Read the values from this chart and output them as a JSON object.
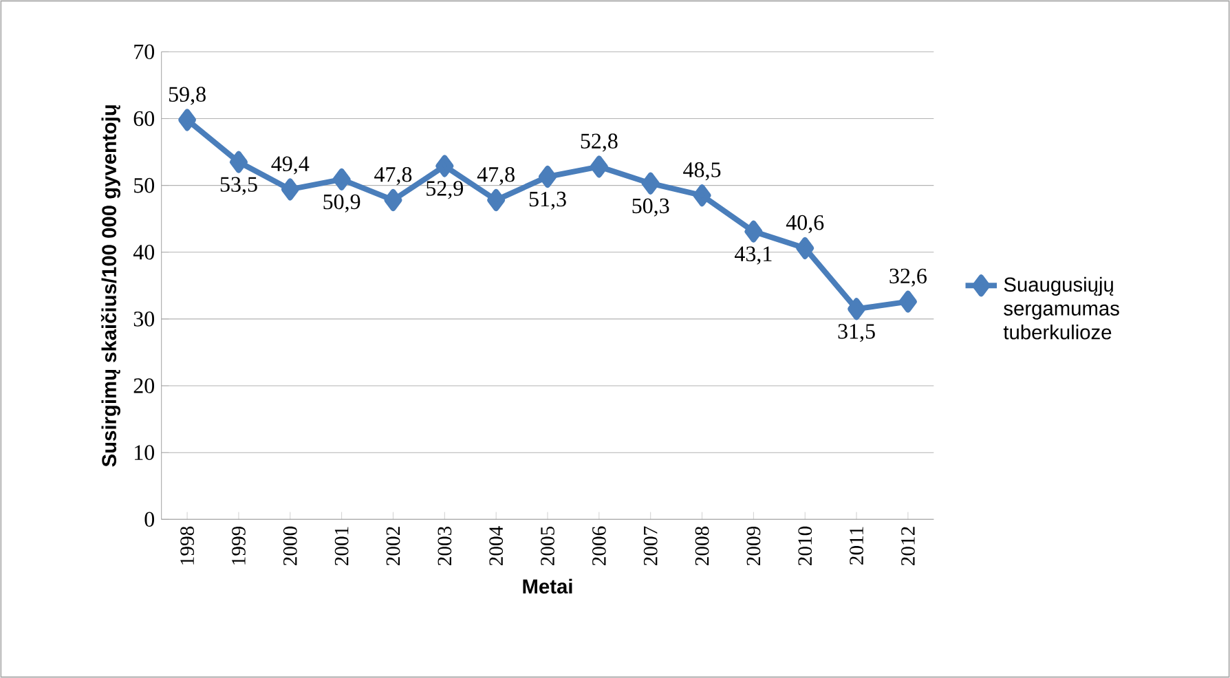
{
  "chart_data": {
    "type": "line",
    "xlabel": "Metai",
    "ylabel": "Susirgimų skaičius/100 000 gyventojų",
    "categories": [
      "1998",
      "1999",
      "2000",
      "2001",
      "2002",
      "2003",
      "2004",
      "2005",
      "2006",
      "2007",
      "2008",
      "2009",
      "2010",
      "2011",
      "2012"
    ],
    "series": [
      {
        "name": "Suaugusiųjų sergamumas tuberkulioze",
        "color": "#4a7ebb",
        "values": [
          59.8,
          53.5,
          49.4,
          50.9,
          47.8,
          52.9,
          47.8,
          51.3,
          52.8,
          50.3,
          48.5,
          43.1,
          40.6,
          31.5,
          32.6
        ],
        "value_labels": [
          "59,8",
          "53,5",
          "49,4",
          "50,9",
          "47,8",
          "52,9",
          "47,8",
          "51,3",
          "52,8",
          "50,3",
          "48,5",
          "43,1",
          "40,6",
          "31,5",
          "32,6"
        ]
      }
    ],
    "ylim": [
      0,
      70
    ],
    "yticks": [
      0,
      10,
      20,
      30,
      40,
      50,
      60,
      70
    ],
    "grid": "y",
    "legend": "right",
    "marker": "diamond",
    "line_style": "solid"
  }
}
